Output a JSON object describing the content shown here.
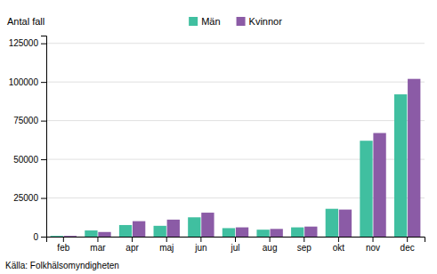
{
  "chart_data": {
    "type": "bar",
    "ylabel": "Antal fall",
    "annotation": "Källa: Folkhälsomyndigheten",
    "categories": [
      "feb",
      "mar",
      "apr",
      "maj",
      "jun",
      "jul",
      "aug",
      "sep",
      "okt",
      "nov",
      "dec"
    ],
    "series": [
      {
        "name": "Män",
        "color": "#40BFA0",
        "values": [
          500,
          4000,
          7500,
          7000,
          12500,
          5500,
          4500,
          6000,
          18000,
          62000,
          92000
        ]
      },
      {
        "name": "Kvinnor",
        "color": "#8B5BA6",
        "values": [
          500,
          3000,
          10000,
          11000,
          15500,
          6000,
          5000,
          6500,
          17500,
          67000,
          102000
        ]
      }
    ],
    "ylim": [
      0,
      130000
    ],
    "yticks": [
      0,
      25000,
      50000,
      75000,
      100000,
      125000
    ],
    "grid": true,
    "legend": "top"
  }
}
